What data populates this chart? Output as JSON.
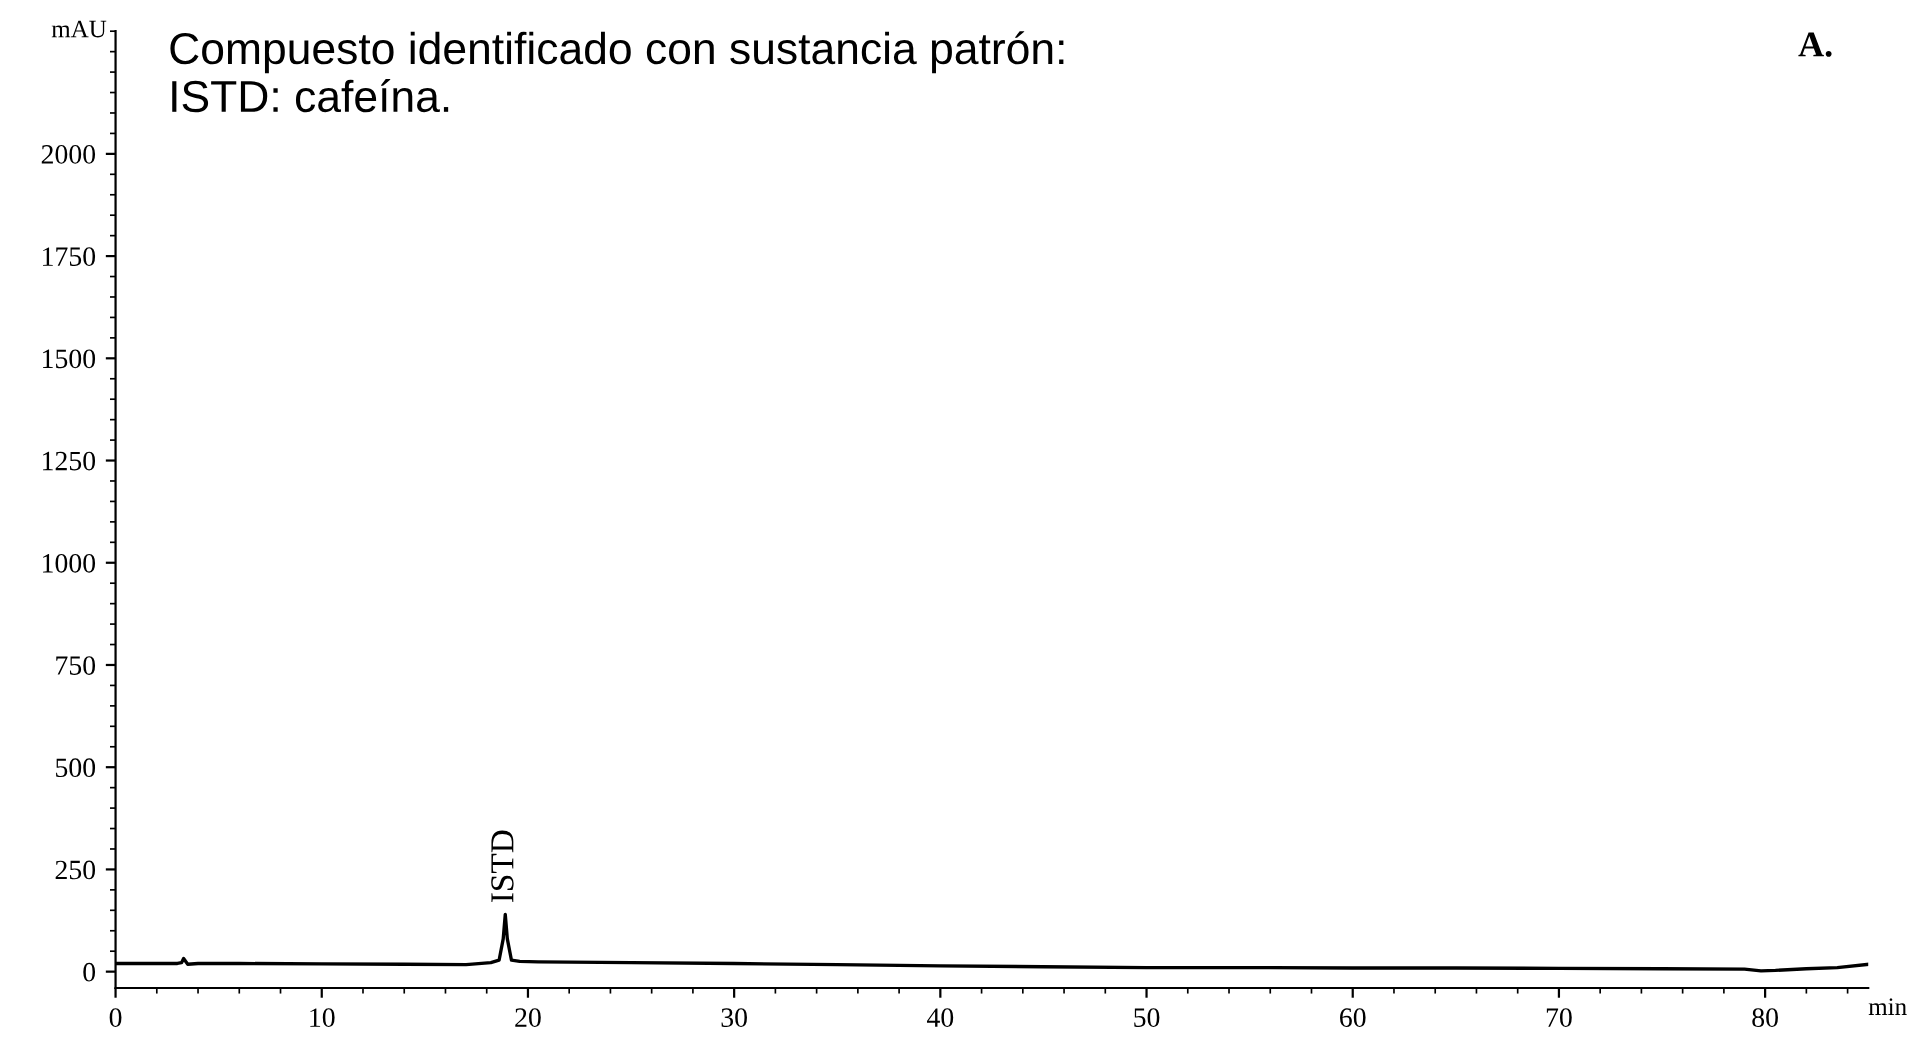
{
  "chart_data": {
    "type": "line",
    "title": "Compuesto identificado con sustancia patrón:\nISTD: cafeína.",
    "xlabel": "min",
    "ylabel": "mAU",
    "annotations": [
      "A.",
      {
        "text": "ISTD",
        "x": 18.9,
        "y": 140
      }
    ],
    "x": [
      0,
      3.0,
      3.2,
      3.3,
      3.5,
      4.0,
      6,
      10,
      14,
      17,
      18.2,
      18.6,
      18.8,
      18.9,
      19.0,
      19.2,
      19.6,
      20.5,
      25,
      30,
      35,
      40,
      45,
      50,
      55,
      60,
      65,
      70,
      75,
      79,
      79.8,
      80.5,
      82,
      83.5,
      85
    ],
    "series": [
      {
        "color": "#000000",
        "values": [
          20,
          20,
          22,
          32,
          18,
          20,
          20,
          19,
          18,
          17,
          22,
          28,
          80,
          140,
          80,
          28,
          25,
          24,
          22,
          20,
          17,
          14,
          12,
          10,
          10,
          9,
          9,
          8,
          7,
          6,
          2,
          3,
          7,
          10,
          18
        ]
      }
    ],
    "xlim": [
      0,
      85
    ],
    "ylim": [
      -40,
      2300
    ],
    "xticks": [
      0,
      10,
      20,
      30,
      40,
      50,
      60,
      70,
      80
    ],
    "yticks": [
      0,
      250,
      500,
      750,
      1000,
      1250,
      1500,
      1750,
      2000
    ],
    "grid": false,
    "legend": false,
    "marker": "none",
    "line_style": "solid"
  }
}
